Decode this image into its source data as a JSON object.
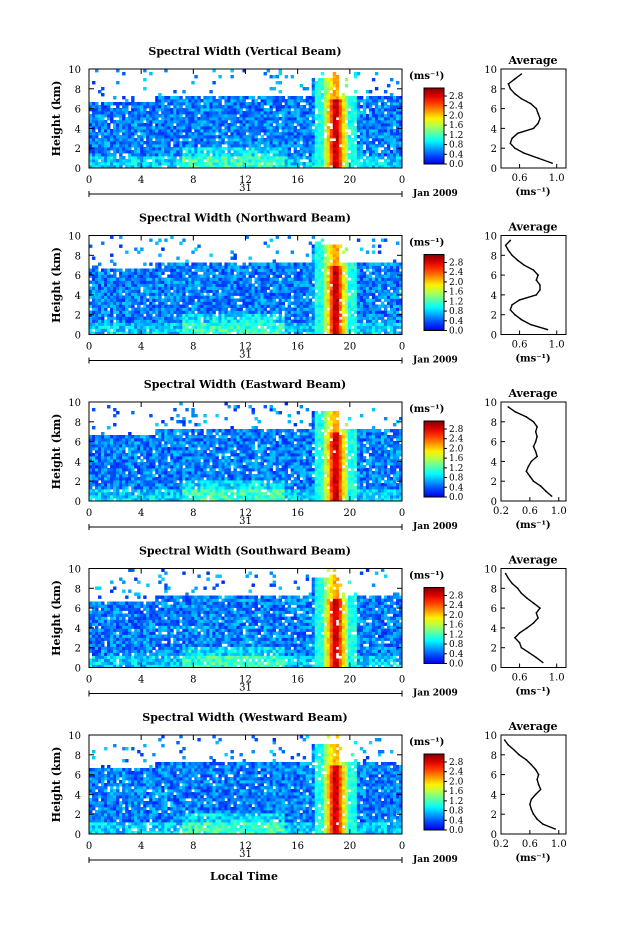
{
  "figure": {
    "xlabel": "Local Time",
    "date_label": "Jan 2009",
    "day_label": "31",
    "units_label": "(ms⁻¹)"
  },
  "chart_data": [
    {
      "type": "heatmap",
      "title": "Spectral Width (Vertical Beam)",
      "xlabel": "",
      "ylabel": "Height (km)",
      "xlim": [
        0,
        24
      ],
      "xticks": [
        "0",
        "4",
        "8",
        "12",
        "16",
        "20",
        "0"
      ],
      "ylim": [
        0,
        10
      ],
      "yticks": [
        "0",
        "2",
        "4",
        "6",
        "8",
        "10"
      ],
      "colorbar": {
        "label": "(ms⁻¹)",
        "ticks": [
          "0.0",
          "0.4",
          "0.8",
          "1.2",
          "1.6",
          "2.0",
          "2.4",
          "2.8"
        ],
        "range": [
          0,
          2.8
        ]
      },
      "profile": {
        "title": "Average",
        "xlabel": "(ms⁻¹)",
        "xticks": [
          "0.6",
          "1.0"
        ],
        "xlim": [
          0.4,
          1.1
        ],
        "ylim": [
          0,
          10
        ],
        "height": [
          0.5,
          1,
          1.5,
          2,
          2.5,
          3,
          3.5,
          4,
          4.5,
          5,
          5.5,
          6,
          6.5,
          7,
          7.5,
          8,
          8.5,
          9,
          9.5
        ],
        "value": [
          0.95,
          0.8,
          0.65,
          0.55,
          0.5,
          0.52,
          0.58,
          0.75,
          0.8,
          0.82,
          0.8,
          0.78,
          0.72,
          0.62,
          0.55,
          0.5,
          0.48,
          0.55,
          0.62
        ]
      }
    },
    {
      "type": "heatmap",
      "title": "Spectral Width (Northward Beam)",
      "xlabel": "",
      "ylabel": "Height (km)",
      "xlim": [
        0,
        24
      ],
      "xticks": [
        "0",
        "4",
        "8",
        "12",
        "16",
        "20",
        "0"
      ],
      "ylim": [
        0,
        10
      ],
      "yticks": [
        "0",
        "2",
        "4",
        "6",
        "8",
        "10"
      ],
      "colorbar": {
        "label": "(ms⁻¹)",
        "ticks": [
          "0.0",
          "0.4",
          "0.8",
          "1.2",
          "1.6",
          "2.0",
          "2.4",
          "2.8"
        ],
        "range": [
          0,
          2.8
        ]
      },
      "profile": {
        "title": "Average",
        "xlabel": "(ms⁻¹)",
        "xticks": [
          "0.6",
          "1.0"
        ],
        "xlim": [
          0.4,
          1.1
        ],
        "ylim": [
          0,
          10
        ],
        "height": [
          0.5,
          1,
          1.5,
          2,
          2.5,
          3,
          3.5,
          4,
          4.5,
          5,
          5.5,
          6,
          6.5,
          7,
          7.5,
          8,
          8.5,
          9,
          9.5
        ],
        "value": [
          0.9,
          0.72,
          0.62,
          0.55,
          0.5,
          0.52,
          0.6,
          0.78,
          0.82,
          0.82,
          0.78,
          0.8,
          0.75,
          0.65,
          0.58,
          0.52,
          0.48,
          0.45,
          0.5
        ]
      }
    },
    {
      "type": "heatmap",
      "title": "Spectral Width (Eastward Beam)",
      "xlabel": "",
      "ylabel": "Height (km)",
      "xlim": [
        0,
        24
      ],
      "xticks": [
        "0",
        "4",
        "8",
        "12",
        "16",
        "20",
        "0"
      ],
      "ylim": [
        0,
        10
      ],
      "yticks": [
        "0",
        "2",
        "4",
        "6",
        "8",
        "10"
      ],
      "colorbar": {
        "label": "(ms⁻¹)",
        "ticks": [
          "0.0",
          "0.4",
          "0.8",
          "1.2",
          "1.6",
          "2.0",
          "2.4",
          "2.8"
        ],
        "range": [
          0,
          2.8
        ]
      },
      "profile": {
        "title": "Average",
        "xlabel": "(ms⁻¹)",
        "xticks": [
          "0.2",
          "0.6",
          "1.0"
        ],
        "xlim": [
          0.2,
          1.1
        ],
        "ylim": [
          0,
          10
        ],
        "height": [
          0.5,
          1,
          1.5,
          2,
          2.5,
          3,
          3.5,
          4,
          4.5,
          5,
          5.5,
          6,
          6.5,
          7,
          7.5,
          8,
          8.5,
          9,
          9.5
        ],
        "value": [
          0.9,
          0.82,
          0.75,
          0.65,
          0.6,
          0.55,
          0.58,
          0.62,
          0.7,
          0.68,
          0.65,
          0.68,
          0.7,
          0.68,
          0.7,
          0.65,
          0.55,
          0.4,
          0.3
        ]
      }
    },
    {
      "type": "heatmap",
      "title": "Spectral Width (Southward Beam)",
      "xlabel": "",
      "ylabel": "Height (km)",
      "xlim": [
        0,
        24
      ],
      "xticks": [
        "0",
        "4",
        "8",
        "12",
        "16",
        "20",
        "0"
      ],
      "ylim": [
        0,
        10
      ],
      "yticks": [
        "0",
        "2",
        "4",
        "6",
        "8",
        "10"
      ],
      "colorbar": {
        "label": "(ms⁻¹)",
        "ticks": [
          "0.0",
          "0.4",
          "0.8",
          "1.2",
          "1.6",
          "2.0",
          "2.4",
          "2.8"
        ],
        "range": [
          0,
          2.8
        ]
      },
      "profile": {
        "title": "Average",
        "xlabel": "(ms⁻¹)",
        "xticks": [
          "0.6",
          "1.0"
        ],
        "xlim": [
          0.4,
          1.1
        ],
        "ylim": [
          0,
          10
        ],
        "height": [
          0.5,
          1,
          1.5,
          2,
          2.5,
          3,
          3.5,
          4,
          4.5,
          5,
          5.5,
          6,
          6.5,
          7,
          7.5,
          8,
          8.5,
          9,
          9.5
        ],
        "value": [
          0.85,
          0.78,
          0.7,
          0.62,
          0.6,
          0.55,
          0.6,
          0.68,
          0.75,
          0.8,
          0.78,
          0.82,
          0.75,
          0.68,
          0.62,
          0.58,
          0.52,
          0.48,
          0.45
        ]
      }
    },
    {
      "type": "heatmap",
      "title": "Spectral Width (Westward Beam)",
      "xlabel": "Local Time",
      "ylabel": "Height (km)",
      "xlim": [
        0,
        24
      ],
      "xticks": [
        "0",
        "4",
        "8",
        "12",
        "16",
        "20",
        "0"
      ],
      "ylim": [
        0,
        10
      ],
      "yticks": [
        "0",
        "2",
        "4",
        "6",
        "8",
        "10"
      ],
      "colorbar": {
        "label": "(ms⁻¹)",
        "ticks": [
          "0.0",
          "0.4",
          "0.8",
          "1.2",
          "1.6",
          "2.0",
          "2.4",
          "2.8"
        ],
        "range": [
          0,
          2.8
        ]
      },
      "profile": {
        "title": "Average",
        "xlabel": "(ms⁻¹)",
        "xticks": [
          "0.2",
          "0.6",
          "1.0"
        ],
        "xlim": [
          0.2,
          1.1
        ],
        "ylim": [
          0,
          10
        ],
        "height": [
          0.5,
          1,
          1.5,
          2,
          2.5,
          3,
          3.5,
          4,
          4.5,
          5,
          5.5,
          6,
          6.5,
          7,
          7.5,
          8,
          8.5,
          9,
          9.5
        ],
        "value": [
          0.95,
          0.78,
          0.7,
          0.65,
          0.62,
          0.6,
          0.62,
          0.68,
          0.75,
          0.72,
          0.7,
          0.72,
          0.68,
          0.62,
          0.55,
          0.45,
          0.38,
          0.3,
          0.25
        ]
      }
    }
  ]
}
